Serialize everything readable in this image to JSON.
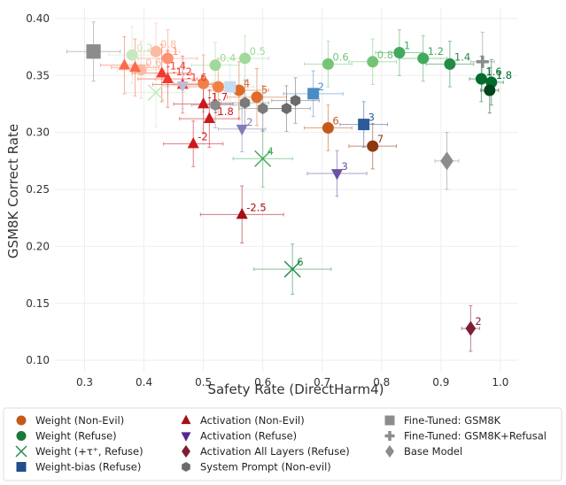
{
  "chart_data": {
    "type": "scatter",
    "xlabel": "Safety Rate (DirectHarm4)",
    "ylabel": "GSM8K Correct Rate",
    "xlim": [
      0.25,
      1.03
    ],
    "ylim": [
      0.09,
      0.41
    ],
    "xticks": [
      "0.3",
      "0.4",
      "0.5",
      "0.6",
      "0.7",
      "0.8",
      "0.9",
      "1.0"
    ],
    "yticks": [
      "0.10",
      "0.15",
      "0.20",
      "0.25",
      "0.30",
      "0.35",
      "0.40"
    ],
    "grid": true,
    "legend_position": "bottom",
    "series": [
      {
        "name": "Weight (Non-Evil)",
        "marker": "circle",
        "colors": [
          "#fcbba1",
          "#fc9272",
          "#f08048",
          "#e06a2a",
          "#c45a1a",
          "#8c3a12"
        ],
        "points": [
          {
            "x": 0.395,
            "y": 0.355,
            "xerr": 0.04,
            "yerr": 0.025,
            "label": "0.6",
            "c": 0
          },
          {
            "x": 0.42,
            "y": 0.371,
            "xerr": 0.04,
            "yerr": 0.025,
            "label": "0.8",
            "c": 0
          },
          {
            "x": 0.44,
            "y": 0.365,
            "xerr": 0.05,
            "yerr": 0.025,
            "label": "1",
            "c": 1
          },
          {
            "x": 0.5,
            "y": 0.343,
            "xerr": 0.05,
            "yerr": 0.025,
            "label": "",
            "c": 2
          },
          {
            "x": 0.525,
            "y": 0.34,
            "xerr": 0.05,
            "yerr": 0.025,
            "label": "",
            "c": 2
          },
          {
            "x": 0.56,
            "y": 0.337,
            "xerr": 0.05,
            "yerr": 0.025,
            "label": "4",
            "c": 3
          },
          {
            "x": 0.59,
            "y": 0.331,
            "xerr": 0.05,
            "yerr": 0.025,
            "label": "5",
            "c": 3
          },
          {
            "x": 0.71,
            "y": 0.304,
            "xerr": 0.04,
            "yerr": 0.02,
            "label": "6",
            "c": 4
          },
          {
            "x": 0.785,
            "y": 0.288,
            "xerr": 0.04,
            "yerr": 0.02,
            "label": "7",
            "c": 5
          }
        ]
      },
      {
        "name": "Weight (Refuse)",
        "marker": "circle",
        "colors": [
          "#c7e9c0",
          "#a1d99b",
          "#74c476",
          "#41ab5d",
          "#238b45",
          "#006d2c",
          "#00441b"
        ],
        "points": [
          {
            "x": 0.38,
            "y": 0.368,
            "xerr": 0.04,
            "yerr": 0.025,
            "label": "0.2",
            "c": 0
          },
          {
            "x": 0.52,
            "y": 0.359,
            "xerr": 0.04,
            "yerr": 0.02,
            "label": "0.4",
            "c": 1
          },
          {
            "x": 0.57,
            "y": 0.365,
            "xerr": 0.04,
            "yerr": 0.02,
            "label": "0.5",
            "c": 1
          },
          {
            "x": 0.71,
            "y": 0.36,
            "xerr": 0.04,
            "yerr": 0.02,
            "label": "0.6",
            "c": 2
          },
          {
            "x": 0.785,
            "y": 0.362,
            "xerr": 0.04,
            "yerr": 0.02,
            "label": "0.8",
            "c": 2
          },
          {
            "x": 0.83,
            "y": 0.37,
            "xerr": 0.04,
            "yerr": 0.02,
            "label": "1",
            "c": 3
          },
          {
            "x": 0.87,
            "y": 0.365,
            "xerr": 0.04,
            "yerr": 0.02,
            "label": "1.2",
            "c": 3
          },
          {
            "x": 0.915,
            "y": 0.36,
            "xerr": 0.04,
            "yerr": 0.02,
            "label": "1.4",
            "c": 4
          },
          {
            "x": 0.968,
            "y": 0.347,
            "xerr": 0.02,
            "yerr": 0.02,
            "label": "1.6",
            "c": 5
          },
          {
            "x": 0.985,
            "y": 0.344,
            "xerr": 0.02,
            "yerr": 0.02,
            "label": "1.8",
            "c": 5
          },
          {
            "x": 0.982,
            "y": 0.337,
            "xerr": 0.015,
            "yerr": 0.02,
            "label": "",
            "c": 6
          }
        ]
      },
      {
        "name": "Weight (+τ⁺, Refuse)",
        "marker": "x",
        "colors": [
          "#c7e9c0",
          "#74c476",
          "#41ab5d",
          "#238b45"
        ],
        "points": [
          {
            "x": 0.42,
            "y": 0.335,
            "xerr": 0.05,
            "yerr": 0.03,
            "label": "",
            "c": 0
          },
          {
            "x": 0.6,
            "y": 0.277,
            "xerr": 0.05,
            "yerr": 0.025,
            "label": "4",
            "c": 2
          },
          {
            "x": 0.65,
            "y": 0.18,
            "xerr": 0.065,
            "yerr": 0.022,
            "label": "6",
            "c": 3
          }
        ]
      },
      {
        "name": "Weight-bias (Refuse)",
        "marker": "square",
        "colors": [
          "#c6dbef",
          "#6baed6",
          "#4a8cc6",
          "#2c5a9a"
        ],
        "points": [
          {
            "x": 0.545,
            "y": 0.34,
            "xerr": 0.04,
            "yerr": 0.02,
            "label": "",
            "c": 0
          },
          {
            "x": 0.685,
            "y": 0.334,
            "xerr": 0.05,
            "yerr": 0.02,
            "label": "2",
            "c": 2
          },
          {
            "x": 0.77,
            "y": 0.307,
            "xerr": 0.04,
            "yerr": 0.02,
            "label": "3",
            "c": 3
          }
        ]
      },
      {
        "name": "Activation (Non-Evil)",
        "marker": "triangle-up",
        "colors": [
          "#fcae91",
          "#fb6a4a",
          "#ef3b2c",
          "#cb181d",
          "#a50f15"
        ],
        "points": [
          {
            "x": 0.367,
            "y": 0.359,
            "xerr": 0.04,
            "yerr": 0.025,
            "label": "",
            "c": 1
          },
          {
            "x": 0.385,
            "y": 0.357,
            "xerr": 0.04,
            "yerr": 0.025,
            "label": "",
            "c": 1
          },
          {
            "x": 0.43,
            "y": 0.352,
            "xerr": 0.05,
            "yerr": 0.025,
            "label": "-1.4",
            "c": 2
          },
          {
            "x": 0.44,
            "y": 0.347,
            "xerr": 0.05,
            "yerr": 0.025,
            "label": "-1.2",
            "c": 2
          },
          {
            "x": 0.465,
            "y": 0.342,
            "xerr": 0.05,
            "yerr": 0.025,
            "label": "-1.6",
            "c": 2
          },
          {
            "x": 0.5,
            "y": 0.325,
            "xerr": 0.05,
            "yerr": 0.025,
            "label": "-1.7",
            "c": 3
          },
          {
            "x": 0.51,
            "y": 0.312,
            "xerr": 0.05,
            "yerr": 0.025,
            "label": "-1.8",
            "c": 3
          },
          {
            "x": 0.483,
            "y": 0.29,
            "xerr": 0.05,
            "yerr": 0.02,
            "label": "-2",
            "c": 3
          },
          {
            "x": 0.565,
            "y": 0.228,
            "xerr": 0.07,
            "yerr": 0.025,
            "label": "-2.5",
            "c": 4
          }
        ]
      },
      {
        "name": "Activation (Refuse)",
        "marker": "triangle-down",
        "colors": [
          "#bcbddc",
          "#807dba",
          "#6a51a3",
          "#54278f"
        ],
        "points": [
          {
            "x": 0.465,
            "y": 0.341,
            "xerr": 0.03,
            "yerr": 0.02,
            "label": "",
            "c": 0
          },
          {
            "x": 0.565,
            "y": 0.303,
            "xerr": 0.04,
            "yerr": 0.02,
            "label": "2",
            "c": 1
          },
          {
            "x": 0.725,
            "y": 0.264,
            "xerr": 0.05,
            "yerr": 0.02,
            "label": "3",
            "c": 2
          }
        ]
      },
      {
        "name": "Activation All Layers (Refuse)",
        "marker": "diamond",
        "colors": [
          "#a50f15",
          "#7f1d35"
        ],
        "points": [
          {
            "x": 0.95,
            "y": 0.128,
            "xerr": 0.015,
            "yerr": 0.02,
            "label": "2",
            "c": 1
          }
        ]
      },
      {
        "name": "System Prompt (Non-evil)",
        "marker": "hexagon",
        "colors": [
          "#8a8a8a",
          "#7a7a7a",
          "#6b6b6b"
        ],
        "points": [
          {
            "x": 0.52,
            "y": 0.324,
            "xerr": 0.04,
            "yerr": 0.02,
            "label": "",
            "c": 0
          },
          {
            "x": 0.57,
            "y": 0.326,
            "xerr": 0.04,
            "yerr": 0.02,
            "label": "",
            "c": 1
          },
          {
            "x": 0.6,
            "y": 0.321,
            "xerr": 0.04,
            "yerr": 0.02,
            "label": "",
            "c": 1
          },
          {
            "x": 0.64,
            "y": 0.321,
            "xerr": 0.04,
            "yerr": 0.02,
            "label": "",
            "c": 2
          },
          {
            "x": 0.655,
            "y": 0.328,
            "xerr": 0.04,
            "yerr": 0.02,
            "label": "",
            "c": 2
          }
        ]
      },
      {
        "name": "Fine-Tuned: GSM8K",
        "marker": "square",
        "colors": [
          "#8c8c8c"
        ],
        "points": [
          {
            "x": 0.315,
            "y": 0.371,
            "xerr": 0.045,
            "yerr": 0.026,
            "label": "",
            "c": 0
          }
        ]
      },
      {
        "name": "Fine-Tuned: GSM8K+Refusal",
        "marker": "plus",
        "colors": [
          "#8c8c8c"
        ],
        "points": [
          {
            "x": 0.97,
            "y": 0.362,
            "xerr": 0.02,
            "yerr": 0.026,
            "label": "",
            "c": 0
          }
        ]
      },
      {
        "name": "Base Model",
        "marker": "diamond",
        "colors": [
          "#8c8c8c"
        ],
        "points": [
          {
            "x": 0.91,
            "y": 0.275,
            "xerr": 0.02,
            "yerr": 0.025,
            "label": "",
            "c": 0
          }
        ]
      }
    ],
    "legend": [
      {
        "label": "Weight (Non-Evil)",
        "marker": "circle",
        "color": "#c45a1a"
      },
      {
        "label": "Weight (Refuse)",
        "marker": "circle",
        "color": "#1a7a3a"
      },
      {
        "label": "Weight (+τ⁺, Refuse)",
        "marker": "x",
        "color": "#2e8b57"
      },
      {
        "label": "Weight-bias (Refuse)",
        "marker": "square",
        "color": "#1f4e8c"
      },
      {
        "label": "Activation (Non-Evil)",
        "marker": "triangle-up",
        "color": "#a50f15"
      },
      {
        "label": "Activation (Refuse)",
        "marker": "triangle-down",
        "color": "#54278f"
      },
      {
        "label": "Activation All Layers (Refuse)",
        "marker": "diamond",
        "color": "#7f1d35"
      },
      {
        "label": "System Prompt (Non-evil)",
        "marker": "hexagon",
        "color": "#6b6b6b"
      },
      {
        "label": "Fine-Tuned: GSM8K",
        "marker": "square",
        "color": "#8c8c8c"
      },
      {
        "label": "Fine-Tuned: GSM8K+Refusal",
        "marker": "plus",
        "color": "#8c8c8c"
      },
      {
        "label": "Base Model",
        "marker": "diamond",
        "color": "#8c8c8c"
      }
    ]
  }
}
